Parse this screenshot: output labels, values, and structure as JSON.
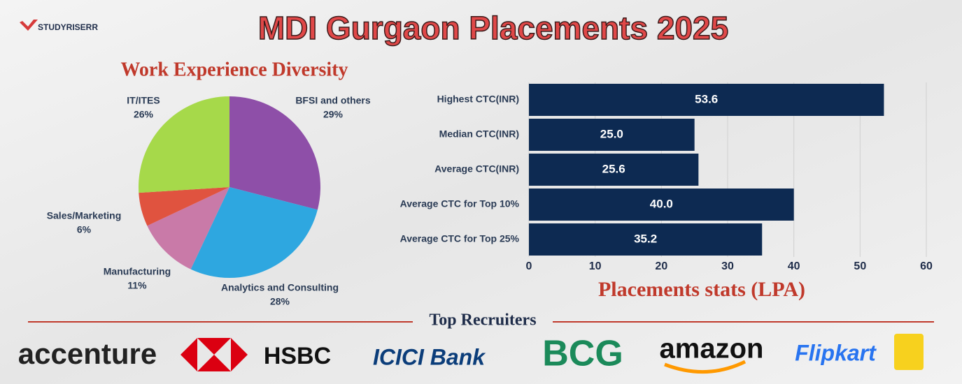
{
  "brand": "STUDYRISERR",
  "title": "MDI Gurgaon Placements 2025",
  "recruiters_heading": "Top Recruiters",
  "recruiters": [
    "accenture",
    "HSBC",
    "ICICI Bank",
    "BCG",
    "amazon",
    "Flipkart"
  ],
  "chart_data": [
    {
      "type": "pie",
      "title": "Work Experience Diversity",
      "categories": [
        "BFSI and others",
        "Analytics and Consulting",
        "Manufacturing",
        "Sales/Marketing",
        "IT/ITES"
      ],
      "values": [
        29,
        28,
        11,
        6,
        26
      ],
      "value_labels": [
        "29%",
        "28%",
        "11%",
        "6%",
        "26%"
      ],
      "colors": [
        "#8e4fa8",
        "#2ea7e0",
        "#c97aa8",
        "#e0533f",
        "#a6d94a"
      ]
    },
    {
      "type": "bar",
      "orientation": "horizontal",
      "title": "Placements stats (LPA)",
      "categories": [
        "Highest CTC(INR)",
        "Median CTC(INR)",
        "Average CTC(INR)",
        "Average CTC for Top 10%",
        "Average CTC for Top 25%"
      ],
      "values": [
        53.6,
        25.0,
        25.6,
        40.0,
        35.2
      ],
      "value_labels": [
        "53.6",
        "25.0",
        "25.6",
        "40.0",
        "35.2"
      ],
      "color": "#0d2a52",
      "xlim": [
        0,
        60
      ],
      "xticks": [
        0,
        10,
        20,
        30,
        40,
        50,
        60
      ],
      "grid": true
    }
  ]
}
